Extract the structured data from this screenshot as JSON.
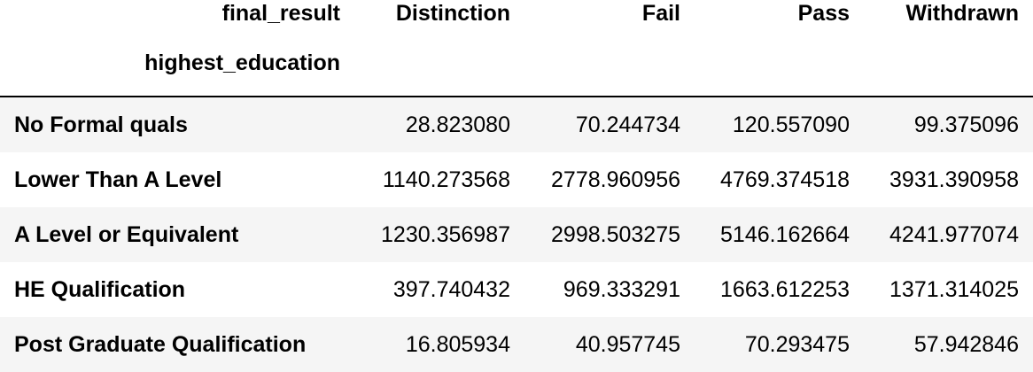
{
  "chart_data": {
    "type": "table",
    "columns_name": "final_result",
    "index_name": "highest_education",
    "columns": [
      "Distinction",
      "Fail",
      "Pass",
      "Withdrawn"
    ],
    "rows": [
      {
        "label": "No Formal quals",
        "values": [
          "28.823080",
          "70.244734",
          "120.557090",
          "99.375096"
        ]
      },
      {
        "label": "Lower Than A Level",
        "values": [
          "1140.273568",
          "2778.960956",
          "4769.374518",
          "3931.390958"
        ]
      },
      {
        "label": "A Level or Equivalent",
        "values": [
          "1230.356987",
          "2998.503275",
          "5146.162664",
          "4241.977074"
        ]
      },
      {
        "label": "HE Qualification",
        "values": [
          "397.740432",
          "969.333291",
          "1663.612253",
          "1371.314025"
        ]
      },
      {
        "label": "Post Graduate Qualification",
        "values": [
          "16.805934",
          "40.957745",
          "70.293475",
          "57.942846"
        ]
      }
    ]
  },
  "colors": {
    "row_stripe": "#f5f5f5",
    "row_plain": "#ffffff",
    "rule": "#000000"
  }
}
